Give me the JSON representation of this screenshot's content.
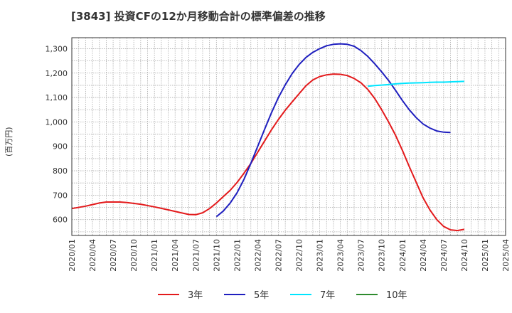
{
  "chart_data": {
    "type": "line",
    "title": "[3843]  投資CFの12か月移動合計の標準偏差の推移",
    "ylabel": "(百万円)",
    "xlabel": "",
    "ylim": [
      535,
      1345
    ],
    "yticks": [
      600,
      700,
      800,
      900,
      1000,
      1100,
      1200,
      1300
    ],
    "ytick_labels": [
      "600",
      "700",
      "800",
      "900",
      "1,000",
      "1,100",
      "1,200",
      "1,300"
    ],
    "xtick_labels": [
      "2020/01",
      "2020/04",
      "2020/07",
      "2020/10",
      "2021/01",
      "2021/04",
      "2021/07",
      "2021/10",
      "2022/01",
      "2022/04",
      "2022/07",
      "2022/10",
      "2023/01",
      "2023/04",
      "2023/07",
      "2023/10",
      "2024/01",
      "2024/04",
      "2024/07",
      "2024/10",
      "2025/01",
      "2025/04"
    ],
    "x_start": "2020/01",
    "x_end": "2025/04",
    "grid": true,
    "legend_position": "bottom",
    "series": [
      {
        "name": "3年",
        "color": "#e31a1c",
        "points": [
          [
            "2020/01",
            645
          ],
          [
            "2020/03",
            655
          ],
          [
            "2020/05",
            668
          ],
          [
            "2020/06",
            672
          ],
          [
            "2020/08",
            672
          ],
          [
            "2020/09",
            670
          ],
          [
            "2020/11",
            663
          ],
          [
            "2021/01",
            652
          ],
          [
            "2021/03",
            640
          ],
          [
            "2021/05",
            627
          ],
          [
            "2021/06",
            621
          ],
          [
            "2021/07",
            620
          ],
          [
            "2021/08",
            628
          ],
          [
            "2021/09",
            645
          ],
          [
            "2021/10",
            668
          ],
          [
            "2021/11",
            694
          ],
          [
            "2021/12",
            720
          ],
          [
            "2022/01",
            752
          ],
          [
            "2022/02",
            790
          ],
          [
            "2022/03",
            830
          ],
          [
            "2022/04",
            876
          ],
          [
            "2022/05",
            922
          ],
          [
            "2022/06",
            968
          ],
          [
            "2022/07",
            1010
          ],
          [
            "2022/08",
            1048
          ],
          [
            "2022/09",
            1082
          ],
          [
            "2022/10",
            1115
          ],
          [
            "2022/11",
            1148
          ],
          [
            "2022/12",
            1172
          ],
          [
            "2023/01",
            1186
          ],
          [
            "2023/02",
            1193
          ],
          [
            "2023/03",
            1196
          ],
          [
            "2023/04",
            1195
          ],
          [
            "2023/05",
            1190
          ],
          [
            "2023/06",
            1178
          ],
          [
            "2023/07",
            1160
          ],
          [
            "2023/08",
            1133
          ],
          [
            "2023/09",
            1096
          ],
          [
            "2023/10",
            1050
          ],
          [
            "2023/11",
            1000
          ],
          [
            "2023/12",
            946
          ],
          [
            "2024/01",
            884
          ],
          [
            "2024/02",
            818
          ],
          [
            "2024/03",
            754
          ],
          [
            "2024/04",
            690
          ],
          [
            "2024/05",
            640
          ],
          [
            "2024/06",
            600
          ],
          [
            "2024/07",
            572
          ],
          [
            "2024/08",
            558
          ],
          [
            "2024/09",
            555
          ],
          [
            "2024/10",
            560
          ]
        ]
      },
      {
        "name": "5年",
        "color": "#1f1fbf",
        "points": [
          [
            "2021/10",
            612
          ],
          [
            "2021/11",
            635
          ],
          [
            "2021/12",
            668
          ],
          [
            "2022/01",
            710
          ],
          [
            "2022/02",
            765
          ],
          [
            "2022/03",
            830
          ],
          [
            "2022/04",
            900
          ],
          [
            "2022/05",
            970
          ],
          [
            "2022/06",
            1038
          ],
          [
            "2022/07",
            1100
          ],
          [
            "2022/08",
            1152
          ],
          [
            "2022/09",
            1198
          ],
          [
            "2022/10",
            1235
          ],
          [
            "2022/11",
            1264
          ],
          [
            "2022/12",
            1285
          ],
          [
            "2023/01",
            1300
          ],
          [
            "2023/02",
            1312
          ],
          [
            "2023/03",
            1318
          ],
          [
            "2023/04",
            1320
          ],
          [
            "2023/05",
            1318
          ],
          [
            "2023/06",
            1310
          ],
          [
            "2023/07",
            1292
          ],
          [
            "2023/08",
            1268
          ],
          [
            "2023/09",
            1238
          ],
          [
            "2023/10",
            1205
          ],
          [
            "2023/11",
            1170
          ],
          [
            "2023/12",
            1130
          ],
          [
            "2024/01",
            1088
          ],
          [
            "2024/02",
            1050
          ],
          [
            "2024/03",
            1018
          ],
          [
            "2024/04",
            992
          ],
          [
            "2024/05",
            975
          ],
          [
            "2024/06",
            963
          ],
          [
            "2024/07",
            958
          ],
          [
            "2024/08",
            957
          ]
        ]
      },
      {
        "name": "7年",
        "color": "#00e5ff",
        "points": [
          [
            "2023/08",
            1146
          ],
          [
            "2023/09",
            1149
          ],
          [
            "2023/10",
            1151
          ],
          [
            "2023/11",
            1153
          ],
          [
            "2023/12",
            1156
          ],
          [
            "2024/01",
            1158
          ],
          [
            "2024/02",
            1159
          ],
          [
            "2024/03",
            1160
          ],
          [
            "2024/04",
            1161
          ],
          [
            "2024/05",
            1162
          ],
          [
            "2024/06",
            1163
          ],
          [
            "2024/07",
            1163
          ],
          [
            "2024/08",
            1164
          ],
          [
            "2024/09",
            1165
          ],
          [
            "2024/10",
            1166
          ]
        ]
      },
      {
        "name": "10年",
        "color": "#2e8b2e",
        "points": []
      }
    ]
  }
}
